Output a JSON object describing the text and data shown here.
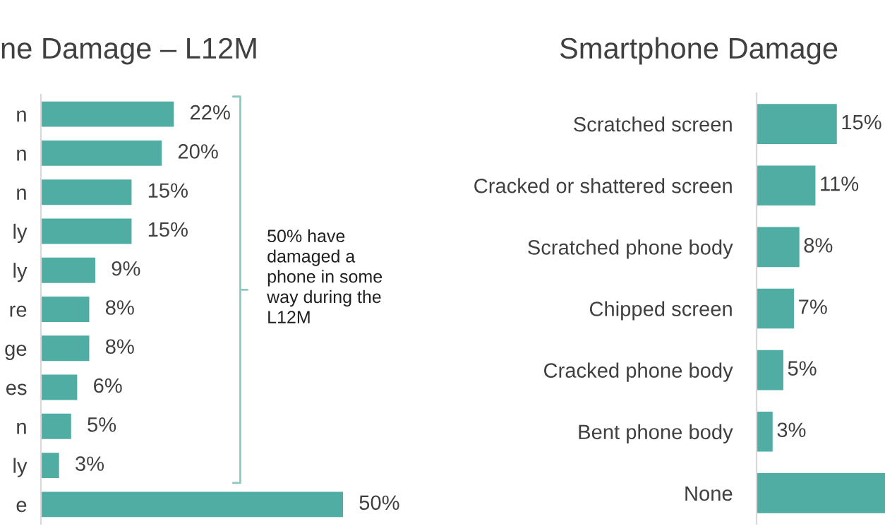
{
  "chart_data": [
    {
      "type": "bar",
      "orientation": "horizontal",
      "title": "ne Damage – L12M",
      "categories": [
        "n",
        "n",
        "n",
        "ly",
        "ly",
        "re",
        "ge",
        "es",
        "n",
        "ly",
        "e"
      ],
      "values": [
        22,
        20,
        15,
        15,
        9,
        8,
        8,
        6,
        5,
        3,
        50
      ],
      "value_labels": [
        "22%",
        "20%",
        "15%",
        "15%",
        "9%",
        "8%",
        "8%",
        "6%",
        "5%",
        "3%",
        "50%"
      ],
      "color": "#4fada4",
      "annotations": [
        "50% have\ndamaged a\nphone in some\nway during the\nL12M"
      ]
    },
    {
      "type": "bar",
      "orientation": "horizontal",
      "title": "Smartphone Damage",
      "categories": [
        "Scratched screen",
        "Cracked or shattered screen",
        "Scratched phone body",
        "Chipped screen",
        "Cracked phone body",
        "Bent phone body",
        "None"
      ],
      "values": [
        15,
        11,
        8,
        7,
        5,
        3,
        24
      ],
      "value_labels": [
        "15%",
        "11%",
        "8%",
        "7%",
        "5%",
        "3%",
        null
      ],
      "color": "#4fada4"
    }
  ]
}
